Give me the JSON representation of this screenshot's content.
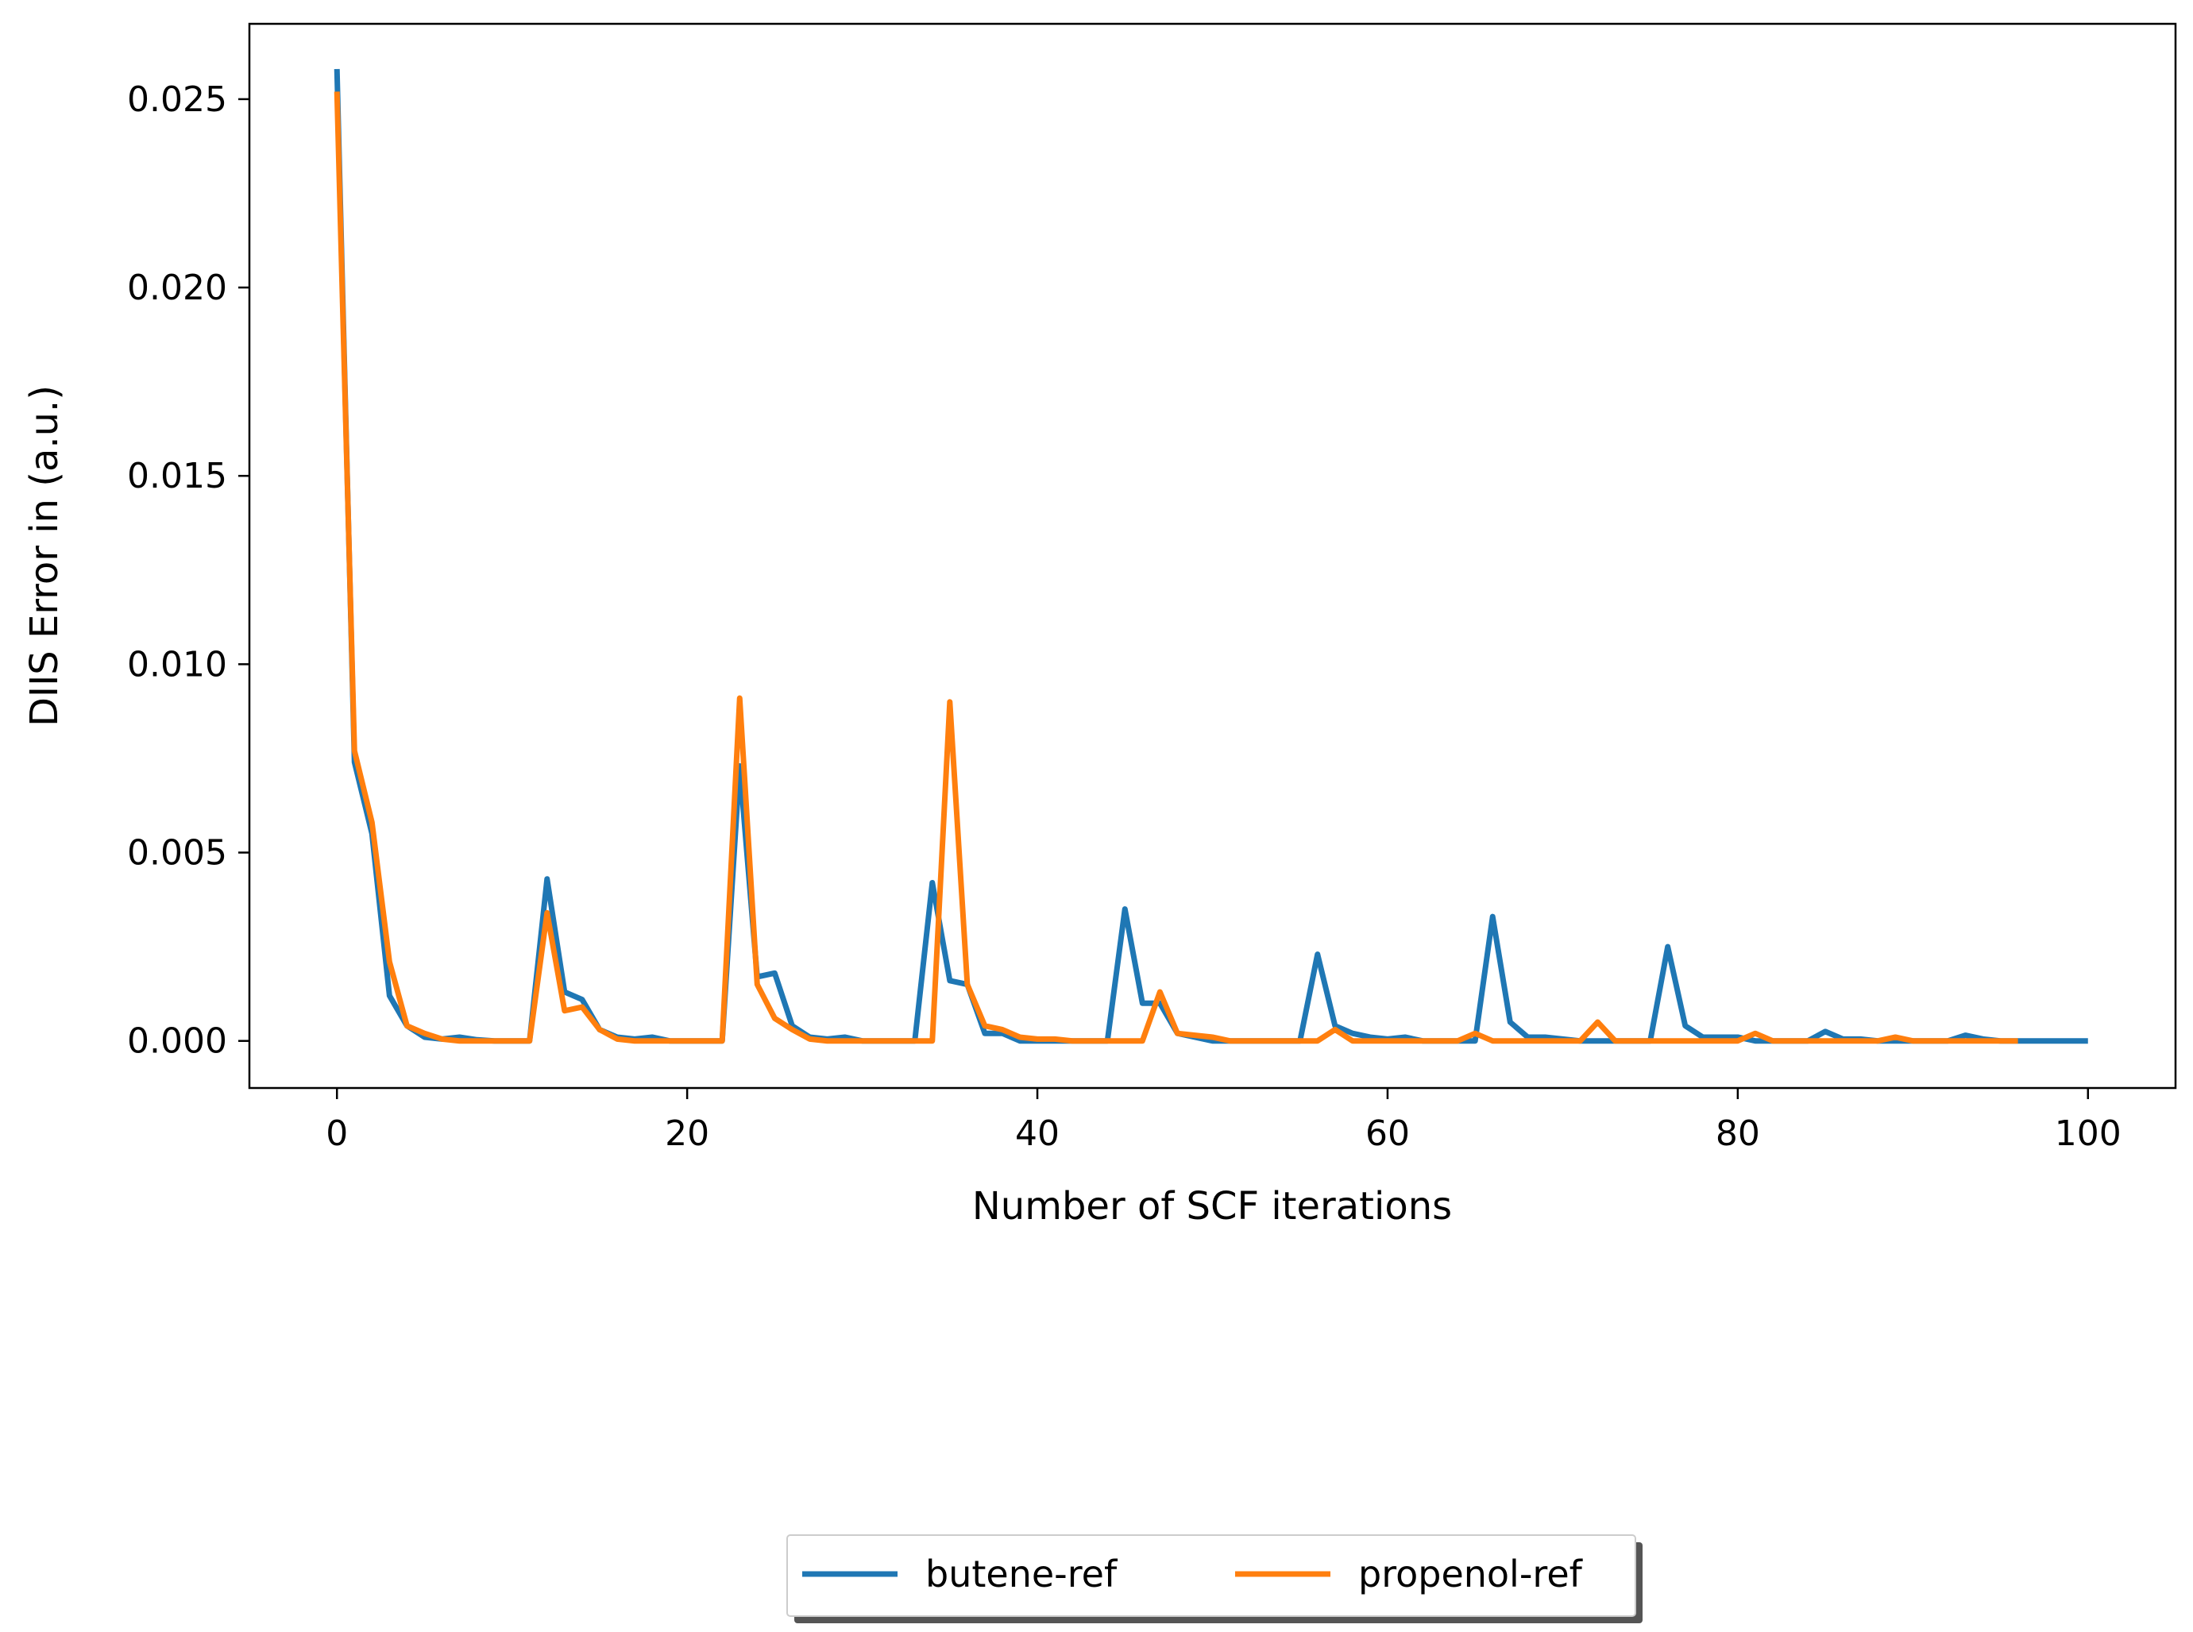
{
  "chart_data": {
    "type": "line",
    "xlabel": "Number of SCF iterations",
    "ylabel": "DIIS Error in (a.u.)",
    "xlim": [
      -5,
      105
    ],
    "ylim": [
      -0.00125,
      0.027
    ],
    "xticks": [
      0,
      20,
      40,
      60,
      80,
      100
    ],
    "xtick_labels": [
      "0",
      "20",
      "40",
      "60",
      "80",
      "100"
    ],
    "yticks": [
      0.0,
      0.005,
      0.01,
      0.015,
      0.02,
      0.025
    ],
    "ytick_labels": [
      "0.000",
      "0.005",
      "0.010",
      "0.015",
      "0.020",
      "0.025"
    ],
    "grid": false,
    "legend_placement": "below",
    "series": [
      {
        "name": "butene-ref",
        "color": "#1f77b4",
        "x": [
          0,
          1,
          2,
          3,
          4,
          5,
          6,
          7,
          8,
          9,
          10,
          11,
          12,
          13,
          14,
          15,
          16,
          17,
          18,
          19,
          20,
          21,
          22,
          23,
          24,
          25,
          26,
          27,
          28,
          29,
          30,
          31,
          32,
          33,
          34,
          35,
          36,
          37,
          38,
          39,
          40,
          41,
          42,
          43,
          44,
          45,
          46,
          47,
          48,
          49,
          50,
          51,
          52,
          53,
          54,
          55,
          56,
          57,
          58,
          59,
          60,
          61,
          62,
          63,
          64,
          65,
          66,
          67,
          68,
          69,
          70,
          71,
          72,
          73,
          74,
          75,
          76,
          77,
          78,
          79,
          80,
          81,
          82,
          83,
          84,
          85,
          86,
          87,
          88,
          89,
          90,
          91,
          92,
          93,
          94,
          95,
          96,
          97,
          98,
          99,
          100
        ],
        "y": [
          0.0258,
          0.0074,
          0.0055,
          0.0012,
          0.0004,
          0.0001,
          5e-05,
          0.0001,
          3e-05,
          0.0,
          0.0,
          0.0,
          0.0043,
          0.0013,
          0.0011,
          0.0003,
          0.0001,
          5e-05,
          0.0001,
          0.0,
          0.0,
          0.0,
          0.0,
          0.0073,
          0.0017,
          0.0018,
          0.0004,
          0.0001,
          5e-05,
          0.0001,
          0.0,
          0.0,
          0.0,
          0.0,
          0.0042,
          0.0016,
          0.0015,
          0.0002,
          0.0002,
          0.0,
          0.0,
          0.0,
          0.0,
          0.0,
          0.0,
          0.0035,
          0.001,
          0.001,
          0.0002,
          0.0001,
          0.0,
          0.0,
          0.0,
          0.0,
          0.0,
          0.0,
          0.0023,
          0.0004,
          0.0002,
          0.0001,
          5e-05,
          0.0001,
          0.0,
          0.0,
          0.0,
          0.0,
          0.0033,
          0.0005,
          0.0001,
          0.0001,
          5e-05,
          0.0,
          0.0,
          0.0,
          0.0,
          0.0,
          0.0025,
          0.0004,
          0.0001,
          0.0001,
          0.0001,
          0.0,
          0.0,
          0.0,
          0.0,
          0.00025,
          5e-05,
          5e-05,
          0.0,
          0.0,
          0.0,
          0.0,
          0.0,
          0.00015,
          5e-05,
          0.0,
          0.0,
          0.0,
          0.0,
          0.0,
          0.0
        ]
      },
      {
        "name": "propenol-ref",
        "color": "#ff7f0e",
        "x": [
          0,
          1,
          2,
          3,
          4,
          5,
          6,
          7,
          8,
          9,
          10,
          11,
          12,
          13,
          14,
          15,
          16,
          17,
          18,
          19,
          20,
          21,
          22,
          23,
          24,
          25,
          26,
          27,
          28,
          29,
          30,
          31,
          32,
          33,
          34,
          35,
          36,
          37,
          38,
          39,
          40,
          41,
          42,
          43,
          44,
          45,
          46,
          47,
          48,
          49,
          50,
          51,
          52,
          53,
          54,
          55,
          56,
          57,
          58,
          59,
          60,
          61,
          62,
          63,
          64,
          65,
          66,
          67,
          68,
          69,
          70,
          71,
          72,
          73,
          74,
          75,
          76,
          77,
          78,
          79,
          80,
          81,
          82,
          83,
          84,
          85,
          86,
          87,
          88,
          89,
          90,
          91,
          92,
          93,
          94,
          95,
          96
        ],
        "y": [
          0.0252,
          0.0077,
          0.0058,
          0.0021,
          0.0004,
          0.0002,
          5e-05,
          0.0,
          0.0,
          0.0,
          0.0,
          0.0,
          0.0034,
          0.0008,
          0.0009,
          0.0003,
          5e-05,
          0.0,
          0.0,
          0.0,
          0.0,
          0.0,
          0.0,
          0.0091,
          0.0015,
          0.0006,
          0.0003,
          5e-05,
          0.0,
          0.0,
          0.0,
          0.0,
          0.0,
          0.0,
          0.0,
          0.009,
          0.0015,
          0.0004,
          0.0003,
          0.0001,
          5e-05,
          5e-05,
          0.0,
          0.0,
          0.0,
          0.0,
          0.0,
          0.0013,
          0.0002,
          0.00015,
          0.0001,
          0.0,
          0.0,
          0.0,
          0.0,
          0.0,
          0.0,
          0.0003,
          0.0,
          0.0,
          0.0,
          0.0,
          0.0,
          0.0,
          0.0,
          0.0002,
          0.0,
          0.0,
          0.0,
          0.0,
          0.0,
          0.0,
          0.0005,
          0.0,
          0.0,
          0.0,
          0.0,
          0.0,
          0.0,
          0.0,
          0.0,
          0.0002,
          0.0,
          0.0,
          0.0,
          0.0,
          0.0,
          0.0,
          0.0,
          0.0001,
          0.0,
          0.0,
          0.0,
          0.0,
          0.0,
          0.0,
          0.0
        ]
      }
    ]
  }
}
